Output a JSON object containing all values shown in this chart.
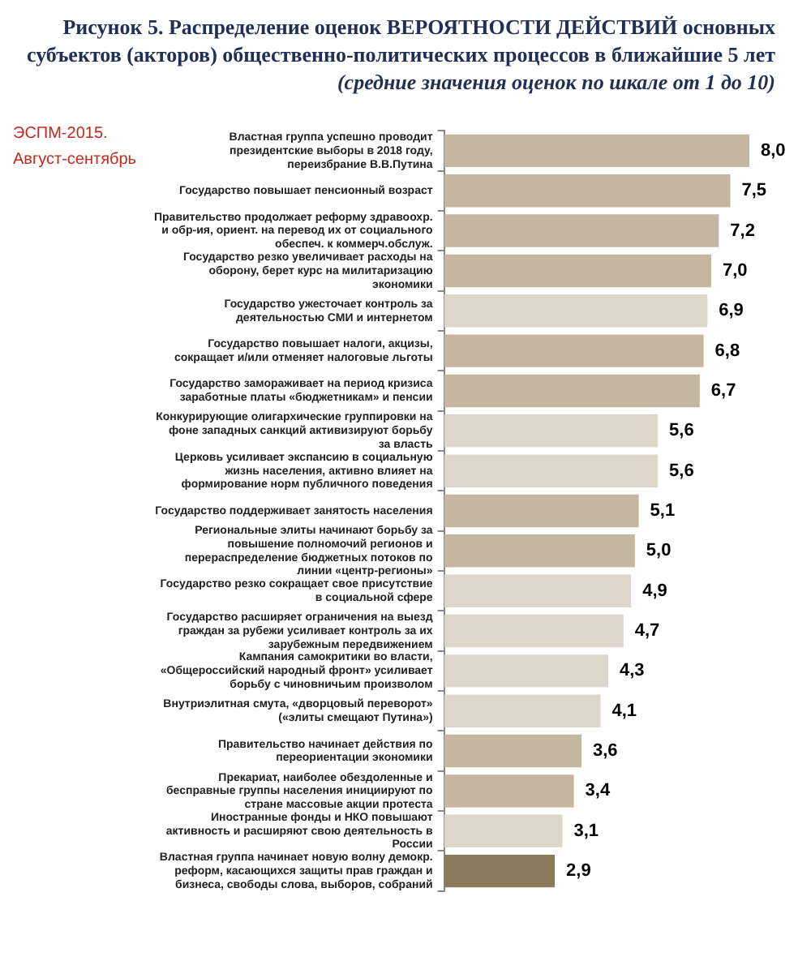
{
  "chart_data": {
    "type": "bar",
    "orientation": "horizontal",
    "title": "Рисунок 5. Распределение оценок ВЕРОЯТНОСТИ ДЕЙСТВИЙ основных субъектов (акторов) общественно-политических процессов в ближайшие 5 лет",
    "subtitle": "(средние значения оценок по шкале от 1 до 10)",
    "annotations": [
      "ЭСПМ-2015.",
      "Август-сентябрь"
    ],
    "categories": [
      "Властная группа успешно проводит президентские выборы в 2018 году, переизбрание В.В.Путина",
      "Государство повышает пенсионный возраст",
      "Правительство продолжает реформу здравоохр. и обр-ия, ориент. на перевод их от социального обеспеч. к коммерч.обслуж.",
      "Государство резко увеличивает расходы на оборону, берет курс на милитаризацию экономики",
      "Государство ужесточает контроль за деятельностью СМИ и интернетом",
      "Государство повышает налоги, акцизы, сокращает и/или отменяет налоговые льготы",
      "Государство замораживает на период кризиса заработные платы «бюджетникам» и пенсии",
      "Конкурирующие олигархические группировки на фоне западных санкций активизируют борьбу за власть",
      "Церковь усиливает экспансию в социальную жизнь населения, активно влияет на формирование норм публичного поведения",
      "Государство поддерживает занятость населения",
      "Региональные элиты начинают борьбу за повышение полномочий регионов и перераспределение бюджетных потоков по линии «центр-регионы»",
      "Государство резко сокращает свое присутствие в социальной сфере",
      "Государство расширяет ограничения на выезд граждан за рубежи усиливает контроль за их зарубежным передвижением",
      "Кампания самокритики во власти, «Общероссийский народный фронт» усиливает борьбу с чиновничьим произволом",
      "Внутриэлитная смута, «дворцовый переворот» («элиты смещают Путина»)",
      "Правительство начинает действия по переориентации экономики",
      "Прекариат, наиболее обездоленные и бесправные группы населения инициируют по стране массовые акции протеста",
      "Иностранные фонды и НКО повышают активность и расширяют свою деятельность в России",
      "Властная группа начинает новую волну демокр. реформ, касающихся защиты прав граждан и бизнеса, свободы слова, выборов, собраний"
    ],
    "values": [
      8.0,
      7.5,
      7.2,
      7.0,
      6.9,
      6.8,
      6.7,
      5.6,
      5.6,
      5.1,
      5.0,
      4.9,
      4.7,
      4.3,
      4.1,
      3.6,
      3.4,
      3.1,
      2.9
    ],
    "value_labels": [
      "8,0",
      "7,5",
      "7,2",
      "7,0",
      "6,9",
      "6,8",
      "6,7",
      "5,6",
      "5,6",
      "5,1",
      "5,0",
      "4,9",
      "4,7",
      "4,3",
      "4,1",
      "3,6",
      "3,4",
      "3,1",
      "2,9"
    ],
    "colors": [
      "#c4b6a0",
      "#c4b6a0",
      "#c4b6a0",
      "#c4b6a0",
      "#dcd6cb",
      "#c4b6a0",
      "#c4b6a0",
      "#dcd6cb",
      "#dcd6cb",
      "#c4b6a0",
      "#c4b6a0",
      "#dcd6cb",
      "#dcd6cb",
      "#dcd6cb",
      "#dcd6cb",
      "#c4b6a0",
      "#c4b6a0",
      "#dcd6cb",
      "#8c7a5c"
    ],
    "legend": false
  }
}
